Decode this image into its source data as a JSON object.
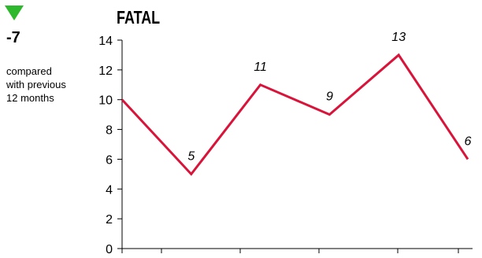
{
  "summary": {
    "trend_direction": "down",
    "trend_color": "#2db82d",
    "delta": "-7",
    "note_lines": [
      "compared",
      "with previous",
      "12 months"
    ]
  },
  "chart_data": {
    "type": "line",
    "title": "FATAL",
    "xlabel": "",
    "ylabel": "",
    "ylim": [
      0,
      14
    ],
    "yticks": [
      0,
      2,
      4,
      6,
      8,
      10,
      12,
      14
    ],
    "x": [
      1,
      2,
      3,
      4,
      5,
      6
    ],
    "series": [
      {
        "values": [
          10,
          5,
          11,
          9,
          13,
          6
        ],
        "data_labels": [
          null,
          "5",
          "11",
          "9",
          "13",
          "6"
        ],
        "color": "#d9143a"
      }
    ],
    "grid": false,
    "legend": "none"
  }
}
